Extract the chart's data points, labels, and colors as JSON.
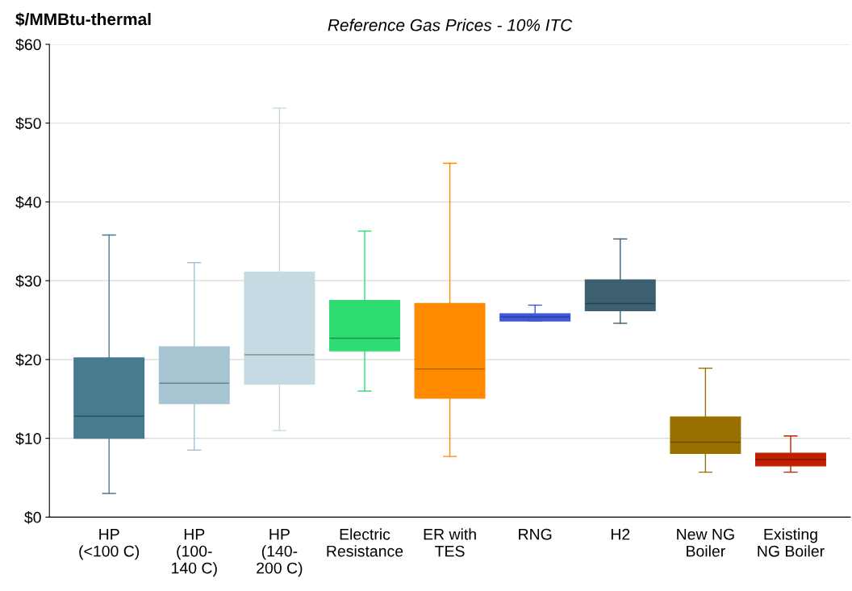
{
  "chart_data": {
    "type": "box",
    "title": "Reference Gas Prices - 10% ITC",
    "ylabel": "$/MMBtu-thermal",
    "categories": [
      "HP\n(<100 C)",
      "HP\n(100-\n140 C)",
      "HP\n(140-\n200 C)",
      "Electric\nResistance",
      "ER with\nTES",
      "RNG",
      "H2",
      "New NG\nBoiler",
      "Existing\nNG Boiler"
    ],
    "boxes": [
      {
        "low": 3.0,
        "q1": 10.0,
        "median": 12.8,
        "q3": 20.2,
        "high": 35.8
      },
      {
        "low": 8.5,
        "q1": 14.4,
        "median": 17.0,
        "q3": 21.6,
        "high": 32.3
      },
      {
        "low": 11.0,
        "q1": 16.9,
        "median": 20.6,
        "q3": 31.1,
        "high": 51.9
      },
      {
        "low": 16.0,
        "q1": 21.1,
        "median": 22.7,
        "q3": 27.5,
        "high": 36.3
      },
      {
        "low": 7.7,
        "q1": 15.1,
        "median": 18.8,
        "q3": 27.1,
        "high": 44.9
      },
      {
        "low": 24.9,
        "q1": 24.9,
        "median": 25.4,
        "q3": 25.8,
        "high": 26.9
      },
      {
        "low": 24.6,
        "q1": 26.2,
        "median": 27.1,
        "q3": 30.1,
        "high": 35.3
      },
      {
        "low": 5.7,
        "q1": 8.1,
        "median": 9.5,
        "q3": 12.7,
        "high": 18.9
      },
      {
        "low": 5.7,
        "q1": 6.5,
        "median": 7.3,
        "q3": 8.1,
        "high": 10.3
      }
    ],
    "colors": [
      "#477b8f",
      "#a6c4d1",
      "#c5dae3",
      "#2edc72",
      "#ff8a00",
      "#3f57d9",
      "#3d6070",
      "#997000",
      "#c02000"
    ],
    "ylim": [
      0,
      60
    ],
    "yticks": [
      {
        "value": 0,
        "label": "$0"
      },
      {
        "value": 10,
        "label": "$10"
      },
      {
        "value": 20,
        "label": "$20"
      },
      {
        "value": 30,
        "label": "$30"
      },
      {
        "value": 40,
        "label": "$40"
      },
      {
        "value": 50,
        "label": "$50"
      },
      {
        "value": 60,
        "label": "$60"
      }
    ],
    "grid": "y",
    "legend": false
  }
}
